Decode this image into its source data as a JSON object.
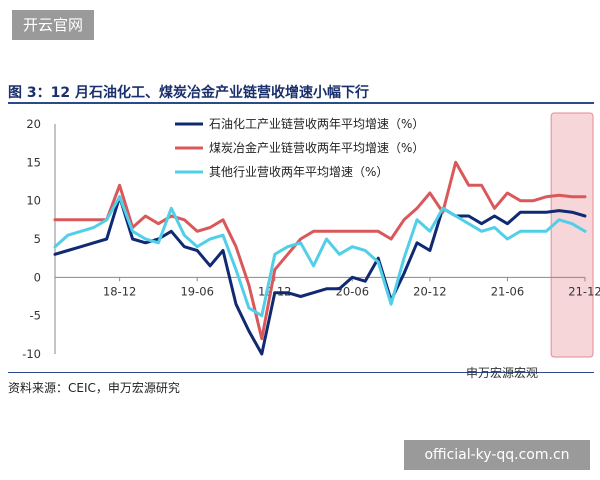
{
  "watermark_top": "开云官网",
  "watermark_bottom": "official-ky-qq.com.cn",
  "source": "资料来源：CEIC，申万宏源研究",
  "brand": "申万宏源宏观",
  "chart_data": {
    "type": "line",
    "title": "图 3：12 月石油化工、煤炭冶金产业链营收增速小幅下行",
    "xlabel": "",
    "ylabel": "",
    "ylim": [
      -10,
      20
    ],
    "yticks": [
      -10,
      -5,
      0,
      5,
      10,
      15,
      20
    ],
    "x": [
      "18-07",
      "18-08",
      "18-09",
      "18-10",
      "18-11",
      "18-12",
      "19-01",
      "19-02",
      "19-03",
      "19-04",
      "19-05",
      "19-06",
      "19-07",
      "19-08",
      "19-09",
      "19-10",
      "19-11",
      "19-12",
      "20-01",
      "20-02",
      "20-03",
      "20-04",
      "20-05",
      "20-06",
      "20-07",
      "20-08",
      "20-09",
      "20-10",
      "20-11",
      "20-12",
      "21-01",
      "21-02",
      "21-03",
      "21-04",
      "21-05",
      "21-06",
      "21-07",
      "21-08",
      "21-09",
      "21-10",
      "21-11",
      "21-12"
    ],
    "xtick_labels": [
      "18-12",
      "19-06",
      "19-12",
      "20-06",
      "20-12",
      "21-06",
      "21-12"
    ],
    "grid": false,
    "legend_position": "top",
    "highlight_range": [
      "21-10",
      "21-12"
    ],
    "series": [
      {
        "name": "石油化工产业链营收两年平均增速（%）",
        "color": "#0f2a73",
        "values": [
          3.0,
          3.5,
          4.0,
          4.5,
          5.0,
          10.5,
          5.0,
          4.5,
          5.0,
          6.0,
          4.0,
          3.5,
          1.5,
          3.5,
          -3.5,
          -7.0,
          -10.0,
          -2.0,
          -2.0,
          -2.5,
          -2.0,
          -1.5,
          -1.5,
          0.0,
          -0.5,
          2.5,
          -3.0,
          0.5,
          4.5,
          3.5,
          9.0,
          8.0,
          8.0,
          7.0,
          8.0,
          7.0,
          8.5,
          8.5,
          8.5,
          8.7,
          8.5,
          8.0
        ]
      },
      {
        "name": "煤炭冶金产业链营收两年平均增速（%）",
        "color": "#d9595b",
        "values": [
          7.5,
          7.5,
          7.5,
          7.5,
          7.5,
          12.0,
          6.5,
          8.0,
          7.0,
          8.0,
          7.5,
          6.0,
          6.5,
          7.5,
          4.0,
          -1.0,
          -8.0,
          1.0,
          3.0,
          5.0,
          6.0,
          6.0,
          6.0,
          6.0,
          6.0,
          6.0,
          5.0,
          7.5,
          9.0,
          11.0,
          8.5,
          15.0,
          12.0,
          12.0,
          9.0,
          11.0,
          10.0,
          10.0,
          10.5,
          10.7,
          10.5,
          10.5
        ]
      },
      {
        "name": "其他行业营收两年平均增速（%）",
        "color": "#52cfe8",
        "values": [
          4.0,
          5.5,
          6.0,
          6.5,
          7.5,
          10.5,
          6.0,
          5.0,
          4.5,
          9.0,
          5.5,
          4.0,
          5.0,
          5.5,
          1.0,
          -4.0,
          -5.0,
          3.0,
          4.0,
          4.5,
          1.5,
          5.0,
          3.0,
          4.0,
          3.5,
          2.0,
          -3.5,
          2.5,
          7.5,
          6.0,
          9.0,
          8.0,
          7.0,
          6.0,
          6.5,
          5.0,
          6.0,
          6.0,
          6.0,
          7.5,
          7.0,
          6.0
        ]
      }
    ]
  }
}
